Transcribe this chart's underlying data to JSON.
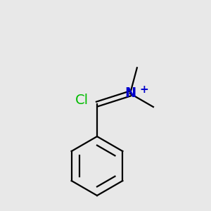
{
  "background_color": "#e8e8e8",
  "bond_color": "#000000",
  "cl_color": "#00bb00",
  "n_color": "#0000cc",
  "font_size": 14,
  "plus_font_size": 11
}
